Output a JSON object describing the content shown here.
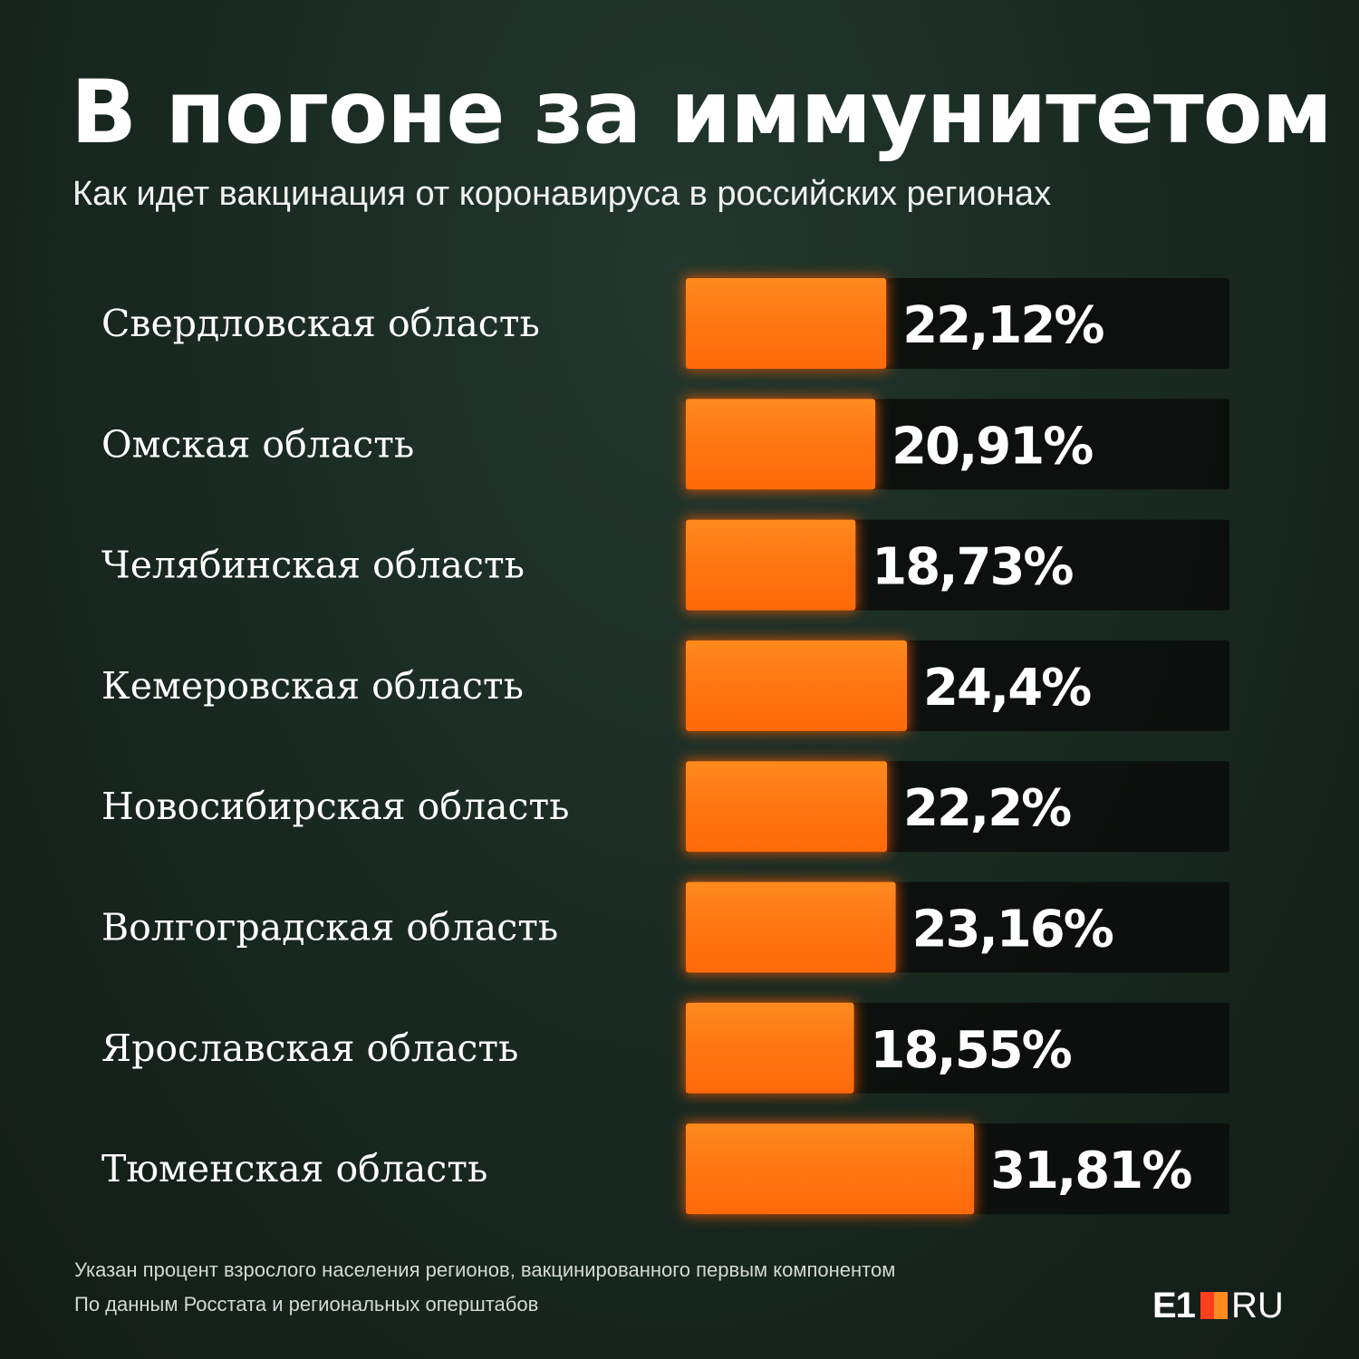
{
  "title": "В погоне за иммунитетом",
  "subtitle": "Как идет вакцинация от коронавируса в российских регионах",
  "chart_data": {
    "type": "bar",
    "orientation": "horizontal",
    "categories": [
      "Свердловская область",
      "Омская область",
      "Челябинская область",
      "Кемеровская область",
      "Новосибирская область",
      "Волгоградская область",
      "Ярославская область",
      "Тюменская область"
    ],
    "values": [
      22.12,
      20.91,
      18.73,
      24.4,
      22.2,
      23.16,
      18.55,
      31.81
    ],
    "value_labels": [
      "22,12%",
      "20,91%",
      "18,73%",
      "24,4%",
      "22,2%",
      "23,16%",
      "18,55%",
      "31,81%"
    ],
    "xlim": [
      0,
      60
    ],
    "grid": false,
    "legend": "none",
    "colors": {
      "bar": "#ff7a14",
      "bar_glow": "#ff5a00",
      "track": "#0a0d0b",
      "label": "#ffffff"
    }
  },
  "footnotes": {
    "note": "Указан процент взрослого населения регионов, вакцинированного первым компонентом",
    "source": "По данным Росстата и региональных оперштабов"
  },
  "logo": {
    "left": "E1",
    "right": "RU"
  }
}
